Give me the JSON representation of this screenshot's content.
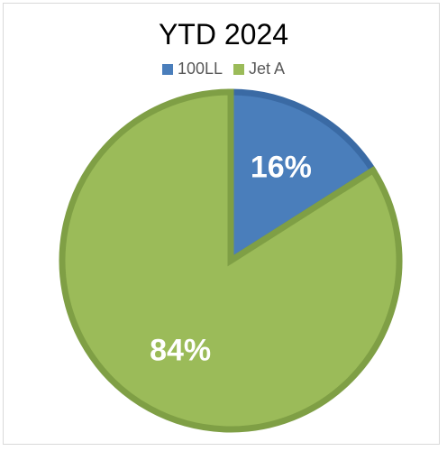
{
  "chart_data": {
    "type": "pie",
    "title": "YTD 2024",
    "legend_position": "top",
    "categories": [
      "100LL",
      "Jet A"
    ],
    "values": [
      16,
      84
    ],
    "data_labels": [
      "16%",
      "84%"
    ],
    "colors": [
      "#4a7ebb",
      "#9bbb59"
    ],
    "border_colors": [
      "#3a6aa4",
      "#7f9f45"
    ]
  }
}
